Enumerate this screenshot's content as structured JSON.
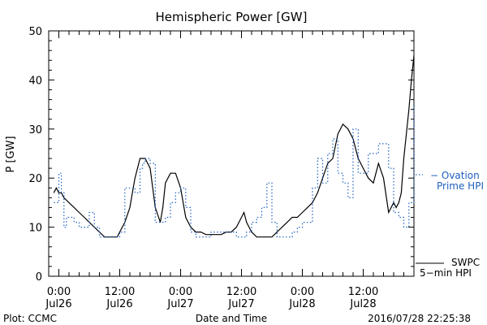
{
  "colors": {
    "swpc": "#000000",
    "ovation": "#1f5fbf"
  },
  "footer": {
    "plot_credit": "Plot: CCMC",
    "timestamp": "2016/07/28 22:25:38"
  },
  "chart_data": {
    "type": "line",
    "title": "Hemispheric Power [GW]",
    "xlabel": "Date and Time",
    "ylabel": "P [GW]",
    "x_units": "hours since 2016-07-26 00:00 UT",
    "xlim": [
      -2,
      70
    ],
    "ylim": [
      0,
      50
    ],
    "yticks": [
      0,
      10,
      20,
      30,
      40,
      50
    ],
    "xticks": [
      {
        "x": 0,
        "time": "0:00",
        "day": "Jul26"
      },
      {
        "x": 12,
        "time": "12:00",
        "day": "Jul26"
      },
      {
        "x": 24,
        "time": "0:00",
        "day": "Jul27"
      },
      {
        "x": 36,
        "time": "12:00",
        "day": "Jul27"
      },
      {
        "x": 48,
        "time": "0:00",
        "day": "Jul28"
      },
      {
        "x": 60,
        "time": "12:00",
        "day": "Jul28"
      }
    ],
    "series": [
      {
        "name": "SWPC 5-min HPI",
        "legend_line1": "SWPC",
        "legend_line2": "5−min HPI",
        "style": "solid",
        "x": [
          -1,
          -0.5,
          0,
          0.5,
          1,
          2,
          3,
          4,
          5,
          6,
          7,
          8,
          9,
          10,
          11,
          11.5,
          12,
          13,
          14,
          14.5,
          15,
          16,
          17,
          18,
          19,
          20,
          20.5,
          21,
          22,
          23,
          24,
          25,
          26,
          27,
          28,
          29,
          30,
          31,
          32,
          33,
          34,
          35,
          36,
          36.5,
          37,
          38,
          39,
          40,
          41,
          42,
          43,
          44,
          45,
          46,
          47,
          48,
          49,
          50,
          51,
          52,
          53,
          54,
          55,
          56,
          57,
          58,
          59,
          60,
          61,
          62,
          63,
          64,
          65,
          66,
          66.5,
          67,
          67.5,
          68,
          69,
          69.5,
          70
        ],
        "y": [
          17,
          18,
          17,
          17,
          16,
          15,
          14,
          13,
          12,
          11,
          10,
          9,
          8,
          8,
          8,
          8,
          9,
          11,
          14,
          17,
          20,
          24,
          24,
          22,
          14,
          11,
          14,
          19,
          21,
          21,
          18,
          12,
          10,
          9,
          9,
          8.5,
          8.5,
          8.5,
          8.5,
          9,
          9,
          10,
          12,
          13,
          11,
          9,
          8,
          8,
          8,
          8,
          9,
          10,
          11,
          12,
          12,
          13,
          14,
          15,
          17,
          20,
          23,
          24,
          29,
          31,
          30,
          28,
          24,
          22,
          20,
          19,
          23,
          20,
          13,
          15,
          14,
          15,
          17,
          24,
          34,
          40,
          45
        ]
      },
      {
        "name": "Ovation Prime HPI",
        "legend_line1": "− Ovation",
        "legend_line2": "Prime HPI",
        "style": "dotted",
        "x": [
          -1,
          0,
          0.5,
          1,
          1.5,
          2,
          3,
          4,
          5,
          6,
          7,
          8,
          9,
          10,
          11,
          11.5,
          12,
          13,
          14,
          15,
          16,
          16.5,
          17,
          18,
          19,
          20,
          21,
          22,
          23,
          24,
          25,
          26,
          27,
          28,
          29,
          30,
          31,
          32,
          33,
          34,
          35,
          36,
          37,
          38,
          39,
          40,
          41,
          42,
          43,
          44,
          45,
          46,
          47,
          48,
          49,
          50,
          51,
          52,
          53,
          54,
          55,
          56,
          57,
          58,
          59,
          60,
          61,
          62,
          63,
          64,
          65,
          66,
          67,
          68,
          69,
          70
        ],
        "y": [
          15,
          21,
          17,
          10,
          12,
          12,
          11,
          10,
          10,
          13,
          10,
          8,
          8,
          8,
          8,
          8,
          9,
          18,
          18,
          17,
          22,
          23,
          24,
          23,
          11,
          11,
          12,
          15,
          17,
          18,
          14,
          9,
          8,
          8,
          8,
          9,
          9,
          9,
          9,
          9,
          8,
          8,
          9,
          11,
          12,
          14,
          19,
          11,
          8,
          8,
          8,
          9,
          10,
          11,
          11,
          18,
          24,
          19,
          25,
          28,
          21,
          19,
          16,
          30,
          21,
          21,
          25,
          25,
          27,
          27,
          22,
          13,
          12,
          10,
          15,
          35
        ]
      }
    ],
    "grid": false,
    "legend_position": "right"
  }
}
